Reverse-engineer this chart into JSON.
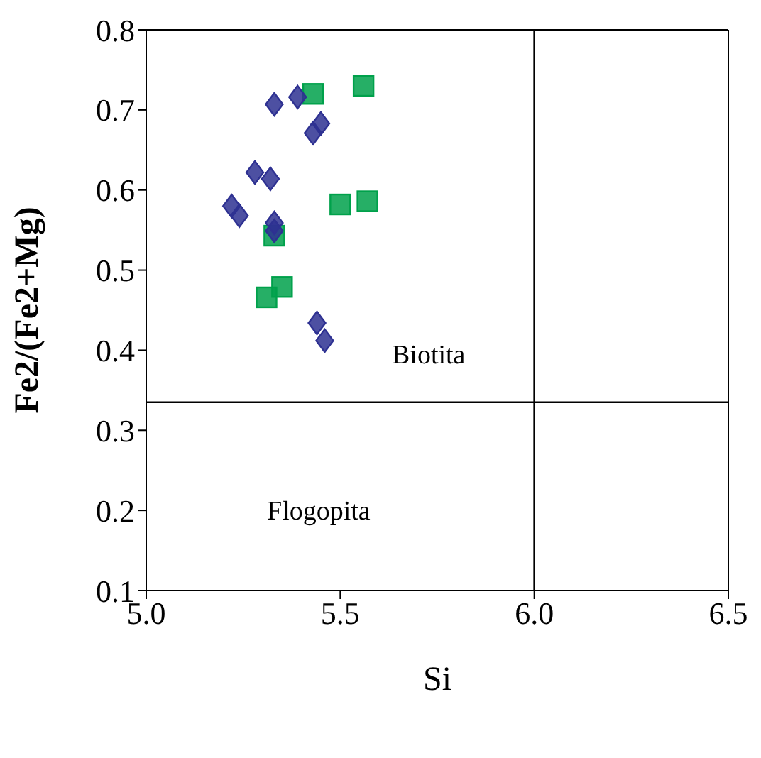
{
  "chart_data": {
    "type": "scatter",
    "xlabel": "Si",
    "ylabel": "Fe2/(Fe2+Mg)",
    "xlim": [
      5.0,
      6.5
    ],
    "xticks": [
      {
        "value": 5.0,
        "label": "5.0"
      },
      {
        "value": 5.5,
        "label": "5.5"
      },
      {
        "value": 6.0,
        "label": "6.0"
      },
      {
        "value": 6.5,
        "label": "6.5"
      }
    ],
    "ylim": [
      0.1,
      0.8
    ],
    "yticks": [
      0.1,
      0.2,
      0.3,
      0.4,
      0.5,
      0.6,
      0.7,
      0.8
    ],
    "series": [
      {
        "marker": "diamond",
        "color": "#2e3192",
        "x": [
          5.33,
          5.45,
          5.28,
          5.22,
          5.33,
          5.44
        ],
        "values": [
          0.707,
          0.683,
          0.622,
          0.58,
          0.559,
          0.434
        ]
      },
      {
        "marker": "diamond",
        "color": "#2e3192",
        "x": [
          5.39,
          5.43,
          5.32,
          5.24,
          5.33,
          5.46
        ],
        "values": [
          0.716,
          0.671,
          0.614,
          0.568,
          0.549,
          0.412
        ]
      },
      {
        "marker": "square",
        "color": "#00a14b",
        "x": [
          5.43,
          5.5,
          5.35
        ],
        "values": [
          0.72,
          0.582,
          0.479
        ]
      },
      {
        "marker": "square",
        "color": "#00a14b",
        "x": [
          5.56,
          5.57,
          5.33,
          5.31
        ],
        "values": [
          0.73,
          0.586,
          0.543,
          0.466
        ]
      }
    ],
    "ref_lines": [
      {
        "axis": "x",
        "value": 6.0,
        "color": "#000000"
      },
      {
        "axis": "y",
        "value": 0.335,
        "color": "#000000"
      }
    ],
    "annotations": [
      "Biotita",
      "Flogopita"
    ]
  }
}
